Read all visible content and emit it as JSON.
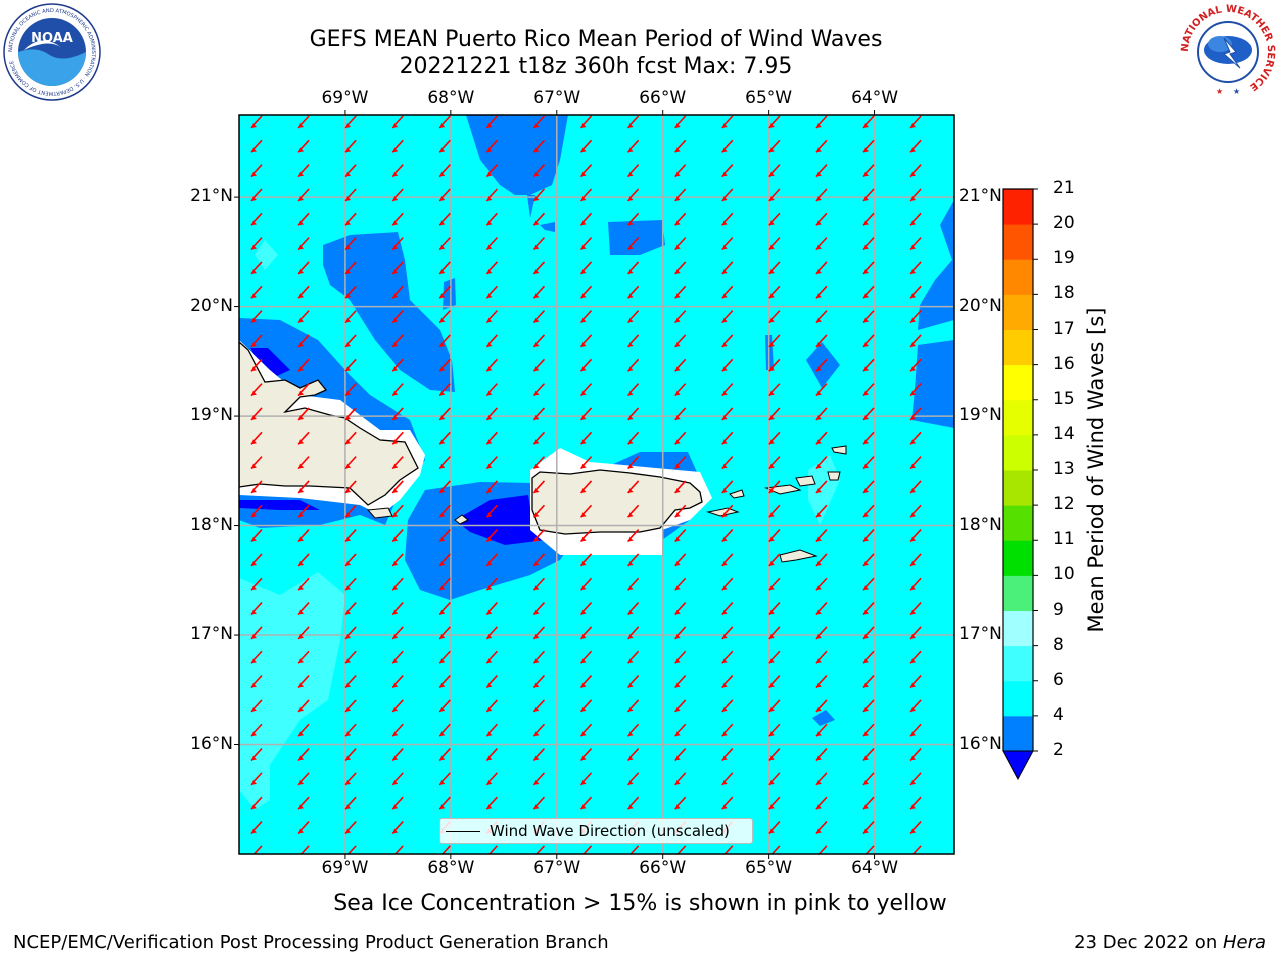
{
  "title": {
    "line1": "GEFS MEAN Puerto Rico Mean Period of Wind Waves",
    "line2": "20221221 t18z 360h fcst   Max: 7.95"
  },
  "logos": {
    "left": {
      "name": "noaa-logo",
      "text": "NOAA",
      "ring_text": "NATIONAL OCEANIC AND ATMOSPHERIC ADMINISTRATION · U.S. DEPARTMENT OF COMMERCE"
    },
    "right": {
      "name": "nws-logo",
      "ring_text": "NATIONAL WEATHER SERVICE"
    }
  },
  "map": {
    "lon_ticks": [
      "69°W",
      "68°W",
      "67°W",
      "66°W",
      "65°W",
      "64°W"
    ],
    "lon_values": [
      -69,
      -68,
      -67,
      -66,
      -65,
      -64
    ],
    "lat_ticks": [
      "21°N",
      "20°N",
      "19°N",
      "18°N",
      "17°N",
      "16°N"
    ],
    "lat_values": [
      21,
      20,
      19,
      18,
      17,
      16
    ],
    "extent": {
      "lon_min": -70.0,
      "lon_max": -63.25,
      "lat_min": 15.0,
      "lat_max": 21.75
    },
    "gridlines": true,
    "ocean_color": "#00ffff",
    "land_color": "#efedde",
    "arrow_color": "#ff0000",
    "arrow_direction": "toward southwest",
    "legend_label": "Wind Wave Direction (unscaled)",
    "legend_placement": "bottom-center"
  },
  "colorbar": {
    "title": "Mean Period of Wind Waves [s]",
    "ticks": [
      "2",
      "4",
      "6",
      "8",
      "9",
      "10",
      "11",
      "12",
      "13",
      "14",
      "15",
      "16",
      "17",
      "18",
      "19",
      "20",
      "21"
    ],
    "levels": [
      2,
      4,
      6,
      8,
      9,
      10,
      11,
      12,
      13,
      14,
      15,
      16,
      17,
      18,
      19,
      20,
      21
    ],
    "colors": [
      "#0080ff",
      "#00ffff",
      "#40ffff",
      "#a0ffff",
      "#4af07a",
      "#00e000",
      "#55e000",
      "#a8e600",
      "#ccff00",
      "#e6ff00",
      "#ffff00",
      "#ffcc00",
      "#ffaa00",
      "#ff8800",
      "#ff5500",
      "#ff2200"
    ],
    "under_color": "#0000ff",
    "extend": "min"
  },
  "note": "Sea Ice Concentration > 15% is shown in pink to yellow",
  "footer": {
    "left": "NCEP/EMC/Verification Post Processing Product Generation Branch",
    "date": "23 Dec 2022 on ",
    "machine": "Hera"
  }
}
